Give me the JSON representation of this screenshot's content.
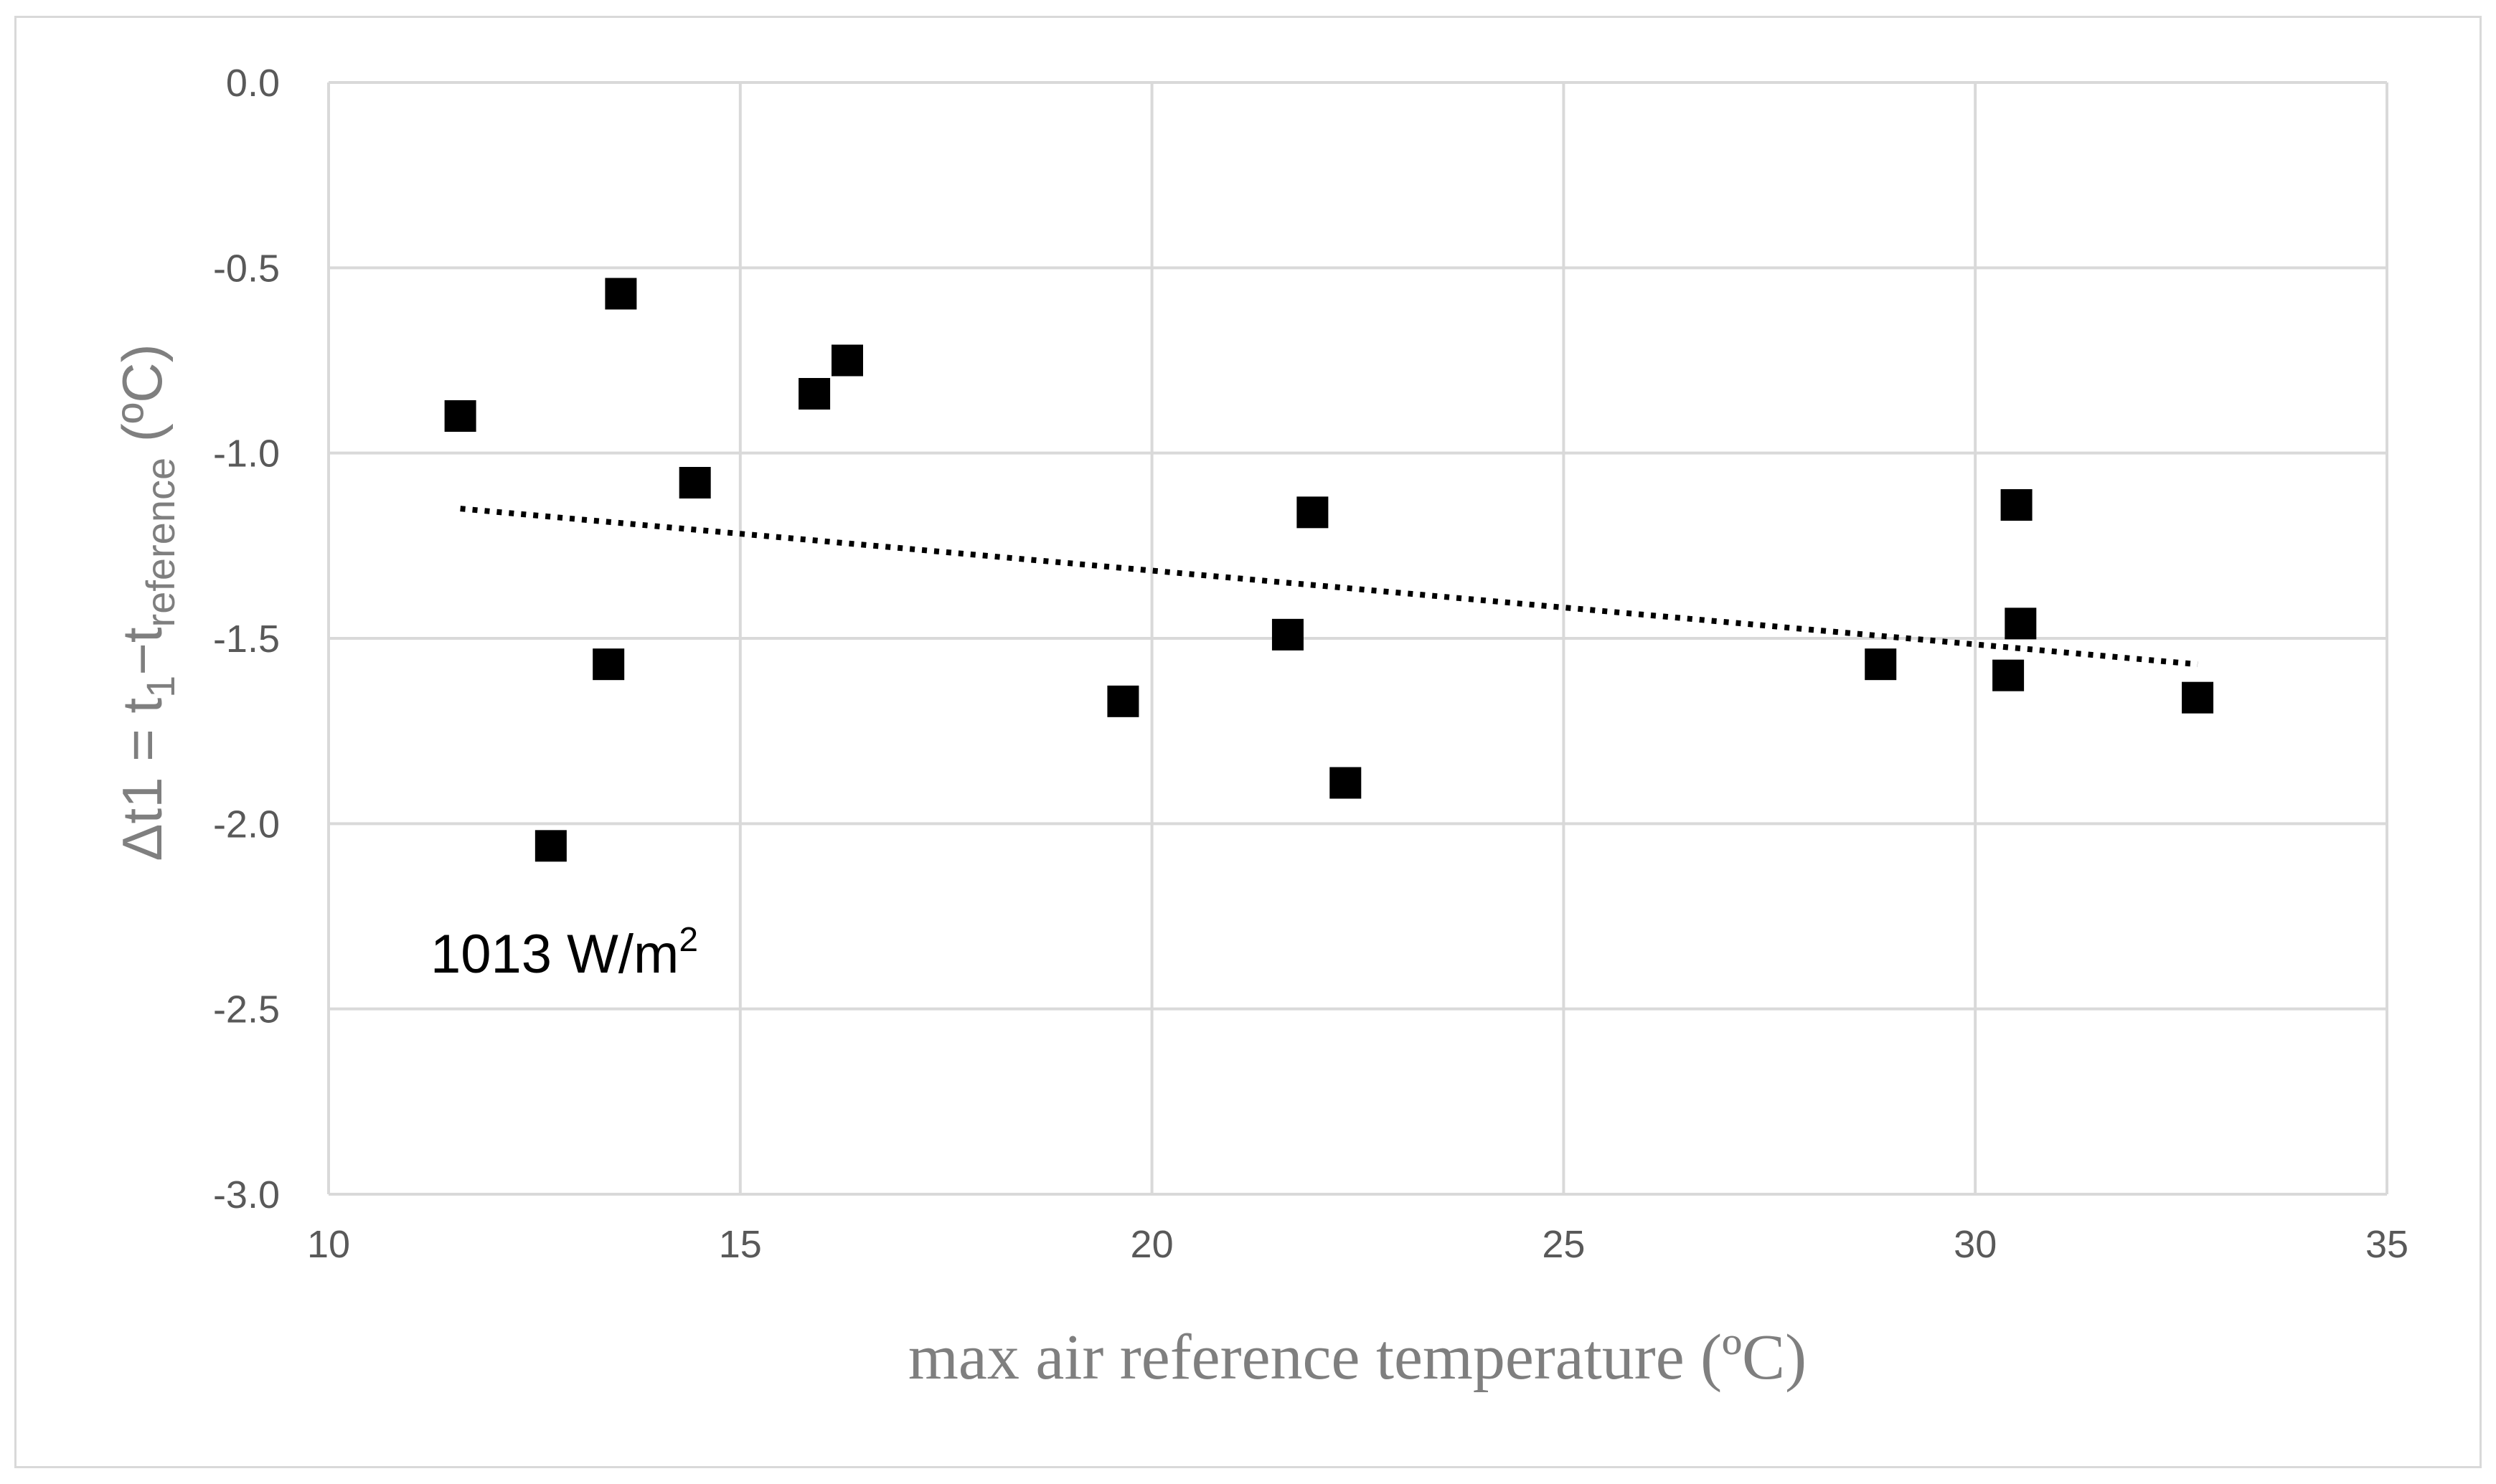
{
  "chart_data": {
    "type": "scatter",
    "title": "",
    "xlabel": "max air reference temperature (ºC)",
    "ylabel": {
      "main": "Δt1 = t",
      "sub1": "1",
      "dash": "−t",
      "sub2": "reference",
      "unit": " (ºC)"
    },
    "xlim": [
      10,
      35
    ],
    "ylim": [
      -3.0,
      0.0
    ],
    "x_ticks": [
      10,
      15,
      20,
      25,
      30,
      35
    ],
    "x_tick_labels": [
      "10",
      "15",
      "20",
      "25",
      "30",
      "35"
    ],
    "y_ticks": [
      0.0,
      -0.5,
      -1.0,
      -1.5,
      -2.0,
      -2.5,
      -3.0
    ],
    "y_tick_labels": [
      "0.0",
      "-0.5",
      "-1.0",
      "-1.5",
      "-2.0",
      "-2.5",
      "-3.0"
    ],
    "grid": true,
    "series": [
      {
        "name": "Δt1",
        "marker": "square",
        "color": "#000000",
        "points": [
          {
            "x": 11.6,
            "y": -0.9
          },
          {
            "x": 12.7,
            "y": -2.06
          },
          {
            "x": 13.4,
            "y": -1.57
          },
          {
            "x": 13.55,
            "y": -0.57
          },
          {
            "x": 14.45,
            "y": -1.08
          },
          {
            "x": 15.9,
            "y": -0.84
          },
          {
            "x": 16.3,
            "y": -0.75
          },
          {
            "x": 19.65,
            "y": -1.67
          },
          {
            "x": 21.65,
            "y": -1.49
          },
          {
            "x": 21.95,
            "y": -1.16
          },
          {
            "x": 22.35,
            "y": -1.89
          },
          {
            "x": 28.85,
            "y": -1.57
          },
          {
            "x": 30.4,
            "y": -1.6
          },
          {
            "x": 30.5,
            "y": -1.14
          },
          {
            "x": 30.55,
            "y": -1.46
          },
          {
            "x": 32.7,
            "y": -1.66
          }
        ]
      }
    ],
    "trendline": {
      "type": "linear",
      "style": "dotted",
      "color": "#000000",
      "x": [
        11.6,
        32.7
      ],
      "y": [
        -1.15,
        -1.57
      ]
    },
    "annotation": {
      "text": "1013 W/m",
      "superscript": "2"
    }
  }
}
